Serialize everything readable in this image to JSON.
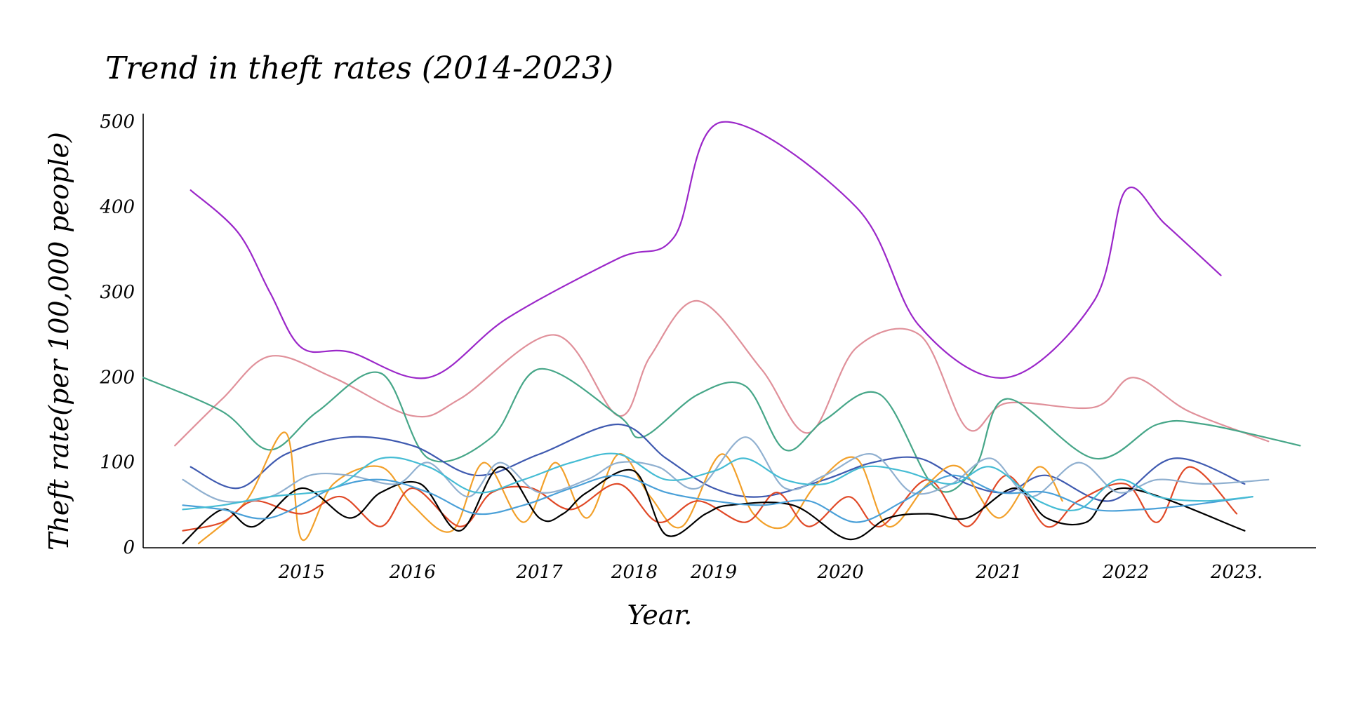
{
  "chart_data": {
    "type": "line",
    "title": "Trend in theft rates (2014-2023)",
    "xlabel": "Year.",
    "ylabel": "Theft rate(per 100,000 people)",
    "x_tick_labels": [
      "2015",
      "2016",
      "2017",
      "2018",
      "2019",
      "2020",
      "2021",
      "2022",
      "2023."
    ],
    "x_tick_values": [
      2015.3,
      2016.0,
      2016.8,
      2017.4,
      2017.9,
      2018.7,
      2019.7,
      2020.5,
      2021.2
    ],
    "y_tick_labels": [
      "0",
      "100",
      "200",
      "300",
      "400",
      "500"
    ],
    "y_tick_values": [
      0,
      100,
      200,
      300,
      400,
      500
    ],
    "xlim": [
      2014.3,
      2021.7
    ],
    "ylim": [
      0,
      510
    ],
    "grid": false,
    "legend": "none",
    "series": [
      {
        "color": "#9b27c9",
        "x": [
          2014.6,
          2014.9,
          2015.1,
          2015.3,
          2015.6,
          2016.1,
          2016.6,
          2017.3,
          2017.65,
          2017.95,
          2018.8,
          2019.2,
          2019.75,
          2020.3,
          2020.5,
          2020.75,
          2021.1
        ],
        "y": [
          420,
          370,
          300,
          235,
          230,
          200,
          270,
          340,
          365,
          500,
          400,
          260,
          200,
          290,
          420,
          380,
          320
        ]
      },
      {
        "color": "#e0909a",
        "x": [
          2014.5,
          2014.8,
          2015.1,
          2015.5,
          2016.0,
          2016.3,
          2016.9,
          2017.3,
          2017.5,
          2017.8,
          2018.2,
          2018.5,
          2018.8,
          2019.2,
          2019.5,
          2019.75,
          2020.3,
          2020.55,
          2020.9,
          2021.4
        ],
        "y": [
          120,
          175,
          225,
          200,
          155,
          175,
          250,
          155,
          225,
          290,
          210,
          135,
          235,
          250,
          140,
          170,
          165,
          200,
          160,
          125
        ]
      },
      {
        "color": "#46a688",
        "x": [
          2014.3,
          2014.8,
          2015.1,
          2015.4,
          2015.8,
          2016.1,
          2016.5,
          2016.8,
          2017.3,
          2017.45,
          2017.8,
          2018.1,
          2018.35,
          2018.6,
          2018.95,
          2019.3,
          2019.55,
          2019.75,
          2020.3,
          2020.7,
          2021.0,
          2021.6
        ],
        "y": [
          200,
          160,
          115,
          160,
          205,
          105,
          130,
          210,
          155,
          130,
          180,
          190,
          115,
          150,
          180,
          70,
          95,
          175,
          105,
          145,
          145,
          120
        ]
      },
      {
        "color": "#3f5ab0",
        "x": [
          2014.6,
          2014.9,
          2015.2,
          2015.6,
          2016.0,
          2016.4,
          2016.8,
          2017.3,
          2017.6,
          2017.9,
          2018.2,
          2018.6,
          2018.9,
          2019.2,
          2019.5,
          2019.75,
          2020.0,
          2020.4,
          2020.8,
          2021.25
        ],
        "y": [
          95,
          70,
          110,
          130,
          120,
          85,
          110,
          145,
          105,
          70,
          60,
          80,
          100,
          105,
          75,
          65,
          85,
          55,
          105,
          75
        ]
      },
      {
        "color": "#f2a02a",
        "x": [
          2014.65,
          2014.95,
          2015.2,
          2015.3,
          2015.5,
          2015.8,
          2016.0,
          2016.25,
          2016.45,
          2016.7,
          2016.9,
          2017.1,
          2017.3,
          2017.5,
          2017.7,
          2017.95,
          2018.15,
          2018.35,
          2018.55,
          2018.8,
          2019.0,
          2019.25,
          2019.45,
          2019.7,
          2019.95,
          2020.1
        ],
        "y": [
          5,
          55,
          135,
          10,
          75,
          95,
          50,
          20,
          100,
          30,
          100,
          35,
          110,
          60,
          25,
          110,
          40,
          25,
          75,
          105,
          25,
          75,
          95,
          35,
          95,
          55
        ]
      },
      {
        "color": "#e04826",
        "x": [
          2014.55,
          2014.8,
          2015.0,
          2015.3,
          2015.55,
          2015.8,
          2016.0,
          2016.3,
          2016.5,
          2016.75,
          2017.0,
          2017.3,
          2017.55,
          2017.8,
          2018.1,
          2018.3,
          2018.5,
          2018.75,
          2018.95,
          2019.25,
          2019.5,
          2019.75,
          2020.0,
          2020.2,
          2020.5,
          2020.7,
          2020.9,
          2021.2
        ],
        "y": [
          20,
          30,
          55,
          40,
          60,
          25,
          70,
          25,
          65,
          70,
          45,
          75,
          30,
          55,
          30,
          65,
          25,
          60,
          25,
          80,
          25,
          85,
          25,
          55,
          75,
          30,
          95,
          40
        ]
      },
      {
        "color": "#000000",
        "x": [
          2014.55,
          2014.8,
          2015.0,
          2015.3,
          2015.6,
          2015.8,
          2016.05,
          2016.3,
          2016.55,
          2016.8,
          2016.95,
          2017.1,
          2017.4,
          2017.6,
          2017.85,
          2018.0,
          2018.4,
          2018.75,
          2019.0,
          2019.25,
          2019.5,
          2019.8,
          2020.0,
          2020.25,
          2020.5,
          2021.25
        ],
        "y": [
          5,
          45,
          25,
          70,
          35,
          65,
          75,
          20,
          95,
          35,
          40,
          65,
          90,
          15,
          40,
          50,
          50,
          10,
          35,
          40,
          35,
          70,
          35,
          30,
          70,
          20
        ]
      },
      {
        "color": "#90b0d0",
        "x": [
          2014.55,
          2014.8,
          2015.1,
          2015.35,
          2015.6,
          2015.9,
          2016.1,
          2016.35,
          2016.55,
          2016.8,
          2017.1,
          2017.3,
          2017.55,
          2017.8,
          2018.1,
          2018.35,
          2018.6,
          2018.9,
          2019.15,
          2019.4,
          2019.65,
          2019.9,
          2020.2,
          2020.45,
          2020.7,
          2021.0,
          2021.4
        ],
        "y": [
          80,
          55,
          60,
          85,
          85,
          75,
          100,
          60,
          100,
          65,
          80,
          100,
          95,
          70,
          130,
          70,
          85,
          110,
          65,
          75,
          105,
          60,
          100,
          65,
          80,
          75,
          80
        ]
      },
      {
        "color": "#4aa0d8",
        "x": [
          2014.55,
          2014.8,
          2015.1,
          2015.5,
          2015.8,
          2016.1,
          2016.4,
          2016.7,
          2017.0,
          2017.3,
          2017.6,
          2017.9,
          2018.2,
          2018.5,
          2018.8,
          2019.1,
          2019.4,
          2019.7,
          2020.0,
          2020.3,
          2020.6,
          2020.9,
          2021.3
        ],
        "y": [
          50,
          45,
          35,
          70,
          80,
          65,
          40,
          50,
          70,
          85,
          65,
          55,
          50,
          55,
          30,
          55,
          85,
          65,
          65,
          45,
          45,
          50,
          60
        ]
      },
      {
        "color": "#45bcd4",
        "x": [
          2014.55,
          2014.8,
          2015.1,
          2015.5,
          2015.8,
          2016.1,
          2016.4,
          2016.7,
          2017.0,
          2017.3,
          2017.6,
          2017.9,
          2018.1,
          2018.35,
          2018.6,
          2018.85,
          2019.1,
          2019.4,
          2019.65,
          2019.95,
          2020.2,
          2020.45,
          2020.7,
          2021.0,
          2021.3
        ],
        "y": [
          45,
          50,
          60,
          70,
          105,
          95,
          65,
          80,
          100,
          110,
          80,
          90,
          105,
          80,
          75,
          95,
          90,
          75,
          95,
          55,
          45,
          80,
          60,
          55,
          60
        ]
      }
    ]
  }
}
